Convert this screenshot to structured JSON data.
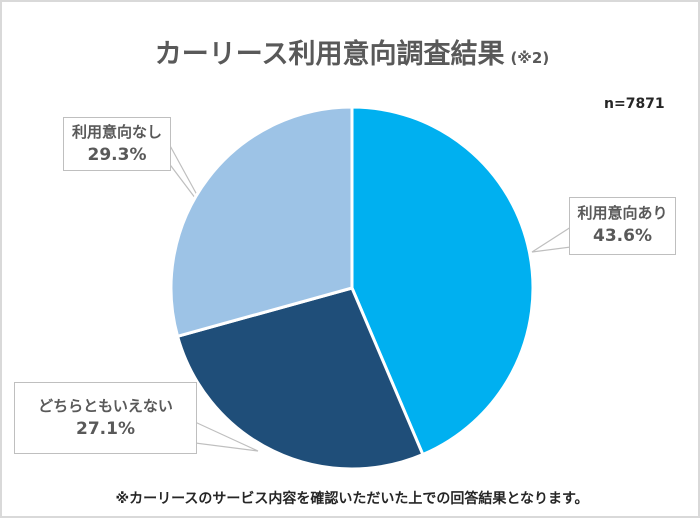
{
  "title": {
    "main": "カーリース利用意向調査結果",
    "sub": "(※2)"
  },
  "sample_size": "n=7871",
  "footnote": "※カーリースのサービス内容を確認いただいた上での回答結果となります。",
  "slices": [
    {
      "label": "利用意向あり",
      "value_text": "43.6%",
      "color": "#00B0F0"
    },
    {
      "label": "どちらともいえない",
      "value_text": "27.1%",
      "color": "#1F4E79"
    },
    {
      "label": "利用意向なし",
      "value_text": "29.3%",
      "color": "#9DC3E6"
    }
  ],
  "chart_data": {
    "type": "pie",
    "title": "カーリース利用意向調査結果 (※2)",
    "categories": [
      "利用意向あり",
      "どちらともいえない",
      "利用意向なし"
    ],
    "values": [
      43.6,
      27.1,
      29.3
    ],
    "unit": "%",
    "colors": [
      "#00B0F0",
      "#1F4E79",
      "#9DC3E6"
    ],
    "start_angle": "12 o'clock, clockwise",
    "annotations": [
      "n=7871",
      "※カーリースのサービス内容を確認いただいた上での回答結果となります。"
    ],
    "legend": "none (callout data labels)"
  }
}
